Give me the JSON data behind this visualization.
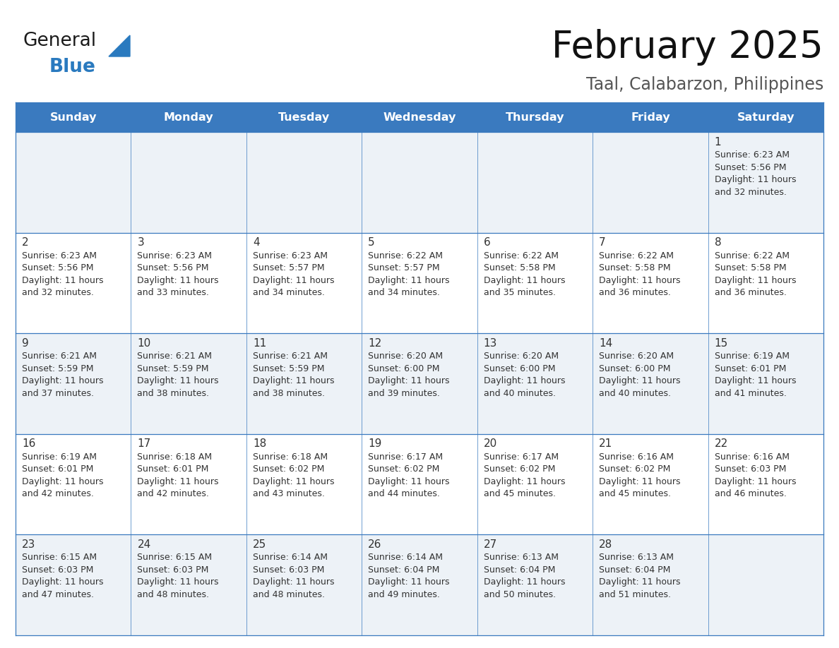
{
  "title": "February 2025",
  "subtitle": "Taal, Calabarzon, Philippines",
  "header_color": "#3a7abf",
  "header_text_color": "#ffffff",
  "row_bg_colors": [
    "#edf2f7",
    "#ffffff"
  ],
  "border_color": "#3a7abf",
  "day_names": [
    "Sunday",
    "Monday",
    "Tuesday",
    "Wednesday",
    "Thursday",
    "Friday",
    "Saturday"
  ],
  "days": [
    {
      "day": 1,
      "col": 6,
      "row": 0,
      "sunrise": "6:23 AM",
      "sunset": "5:56 PM",
      "daylight_line1": "Daylight: 11 hours",
      "daylight_line2": "and 32 minutes."
    },
    {
      "day": 2,
      "col": 0,
      "row": 1,
      "sunrise": "6:23 AM",
      "sunset": "5:56 PM",
      "daylight_line1": "Daylight: 11 hours",
      "daylight_line2": "and 32 minutes."
    },
    {
      "day": 3,
      "col": 1,
      "row": 1,
      "sunrise": "6:23 AM",
      "sunset": "5:56 PM",
      "daylight_line1": "Daylight: 11 hours",
      "daylight_line2": "and 33 minutes."
    },
    {
      "day": 4,
      "col": 2,
      "row": 1,
      "sunrise": "6:23 AM",
      "sunset": "5:57 PM",
      "daylight_line1": "Daylight: 11 hours",
      "daylight_line2": "and 34 minutes."
    },
    {
      "day": 5,
      "col": 3,
      "row": 1,
      "sunrise": "6:22 AM",
      "sunset": "5:57 PM",
      "daylight_line1": "Daylight: 11 hours",
      "daylight_line2": "and 34 minutes."
    },
    {
      "day": 6,
      "col": 4,
      "row": 1,
      "sunrise": "6:22 AM",
      "sunset": "5:58 PM",
      "daylight_line1": "Daylight: 11 hours",
      "daylight_line2": "and 35 minutes."
    },
    {
      "day": 7,
      "col": 5,
      "row": 1,
      "sunrise": "6:22 AM",
      "sunset": "5:58 PM",
      "daylight_line1": "Daylight: 11 hours",
      "daylight_line2": "and 36 minutes."
    },
    {
      "day": 8,
      "col": 6,
      "row": 1,
      "sunrise": "6:22 AM",
      "sunset": "5:58 PM",
      "daylight_line1": "Daylight: 11 hours",
      "daylight_line2": "and 36 minutes."
    },
    {
      "day": 9,
      "col": 0,
      "row": 2,
      "sunrise": "6:21 AM",
      "sunset": "5:59 PM",
      "daylight_line1": "Daylight: 11 hours",
      "daylight_line2": "and 37 minutes."
    },
    {
      "day": 10,
      "col": 1,
      "row": 2,
      "sunrise": "6:21 AM",
      "sunset": "5:59 PM",
      "daylight_line1": "Daylight: 11 hours",
      "daylight_line2": "and 38 minutes."
    },
    {
      "day": 11,
      "col": 2,
      "row": 2,
      "sunrise": "6:21 AM",
      "sunset": "5:59 PM",
      "daylight_line1": "Daylight: 11 hours",
      "daylight_line2": "and 38 minutes."
    },
    {
      "day": 12,
      "col": 3,
      "row": 2,
      "sunrise": "6:20 AM",
      "sunset": "6:00 PM",
      "daylight_line1": "Daylight: 11 hours",
      "daylight_line2": "and 39 minutes."
    },
    {
      "day": 13,
      "col": 4,
      "row": 2,
      "sunrise": "6:20 AM",
      "sunset": "6:00 PM",
      "daylight_line1": "Daylight: 11 hours",
      "daylight_line2": "and 40 minutes."
    },
    {
      "day": 14,
      "col": 5,
      "row": 2,
      "sunrise": "6:20 AM",
      "sunset": "6:00 PM",
      "daylight_line1": "Daylight: 11 hours",
      "daylight_line2": "and 40 minutes."
    },
    {
      "day": 15,
      "col": 6,
      "row": 2,
      "sunrise": "6:19 AM",
      "sunset": "6:01 PM",
      "daylight_line1": "Daylight: 11 hours",
      "daylight_line2": "and 41 minutes."
    },
    {
      "day": 16,
      "col": 0,
      "row": 3,
      "sunrise": "6:19 AM",
      "sunset": "6:01 PM",
      "daylight_line1": "Daylight: 11 hours",
      "daylight_line2": "and 42 minutes."
    },
    {
      "day": 17,
      "col": 1,
      "row": 3,
      "sunrise": "6:18 AM",
      "sunset": "6:01 PM",
      "daylight_line1": "Daylight: 11 hours",
      "daylight_line2": "and 42 minutes."
    },
    {
      "day": 18,
      "col": 2,
      "row": 3,
      "sunrise": "6:18 AM",
      "sunset": "6:02 PM",
      "daylight_line1": "Daylight: 11 hours",
      "daylight_line2": "and 43 minutes."
    },
    {
      "day": 19,
      "col": 3,
      "row": 3,
      "sunrise": "6:17 AM",
      "sunset": "6:02 PM",
      "daylight_line1": "Daylight: 11 hours",
      "daylight_line2": "and 44 minutes."
    },
    {
      "day": 20,
      "col": 4,
      "row": 3,
      "sunrise": "6:17 AM",
      "sunset": "6:02 PM",
      "daylight_line1": "Daylight: 11 hours",
      "daylight_line2": "and 45 minutes."
    },
    {
      "day": 21,
      "col": 5,
      "row": 3,
      "sunrise": "6:16 AM",
      "sunset": "6:02 PM",
      "daylight_line1": "Daylight: 11 hours",
      "daylight_line2": "and 45 minutes."
    },
    {
      "day": 22,
      "col": 6,
      "row": 3,
      "sunrise": "6:16 AM",
      "sunset": "6:03 PM",
      "daylight_line1": "Daylight: 11 hours",
      "daylight_line2": "and 46 minutes."
    },
    {
      "day": 23,
      "col": 0,
      "row": 4,
      "sunrise": "6:15 AM",
      "sunset": "6:03 PM",
      "daylight_line1": "Daylight: 11 hours",
      "daylight_line2": "and 47 minutes."
    },
    {
      "day": 24,
      "col": 1,
      "row": 4,
      "sunrise": "6:15 AM",
      "sunset": "6:03 PM",
      "daylight_line1": "Daylight: 11 hours",
      "daylight_line2": "and 48 minutes."
    },
    {
      "day": 25,
      "col": 2,
      "row": 4,
      "sunrise": "6:14 AM",
      "sunset": "6:03 PM",
      "daylight_line1": "Daylight: 11 hours",
      "daylight_line2": "and 48 minutes."
    },
    {
      "day": 26,
      "col": 3,
      "row": 4,
      "sunrise": "6:14 AM",
      "sunset": "6:04 PM",
      "daylight_line1": "Daylight: 11 hours",
      "daylight_line2": "and 49 minutes."
    },
    {
      "day": 27,
      "col": 4,
      "row": 4,
      "sunrise": "6:13 AM",
      "sunset": "6:04 PM",
      "daylight_line1": "Daylight: 11 hours",
      "daylight_line2": "and 50 minutes."
    },
    {
      "day": 28,
      "col": 5,
      "row": 4,
      "sunrise": "6:13 AM",
      "sunset": "6:04 PM",
      "daylight_line1": "Daylight: 11 hours",
      "daylight_line2": "and 51 minutes."
    }
  ],
  "num_rows": 5,
  "num_cols": 7,
  "logo_color_general": "#1a1a1a",
  "logo_color_blue": "#2a7abf",
  "title_fontsize": 38,
  "subtitle_fontsize": 17,
  "day_name_fontsize": 11.5,
  "day_num_fontsize": 11,
  "cell_text_fontsize": 9,
  "text_color": "#333333"
}
